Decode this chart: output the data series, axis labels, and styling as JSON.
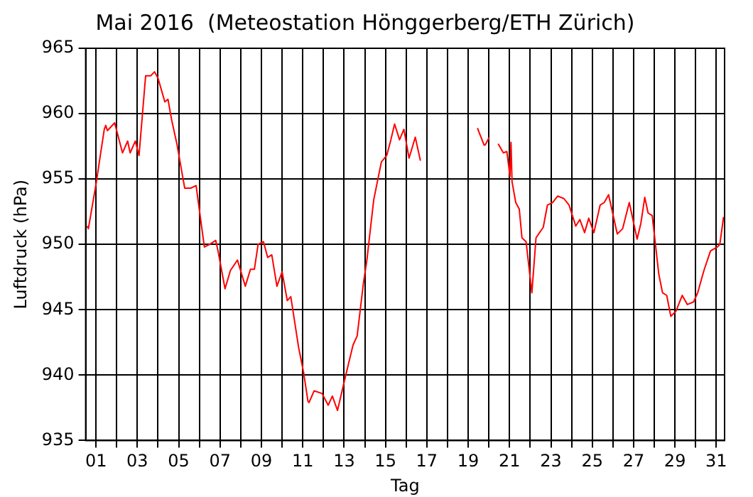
{
  "chart_data": {
    "type": "line",
    "title": "Mai 2016  (Meteostation Hönggerberg/ETH Zürich)",
    "xlabel": "Tag",
    "ylabel": "Luftdruck (hPa)",
    "xlim": [
      0.5,
      31.4
    ],
    "ylim": [
      935,
      965
    ],
    "xticks": [
      {
        "value": 1,
        "label": "01"
      },
      {
        "value": 2,
        "label": null
      },
      {
        "value": 3,
        "label": "03"
      },
      {
        "value": 4,
        "label": null
      },
      {
        "value": 5,
        "label": "05"
      },
      {
        "value": 6,
        "label": null
      },
      {
        "value": 7,
        "label": "07"
      },
      {
        "value": 8,
        "label": null
      },
      {
        "value": 9,
        "label": "09"
      },
      {
        "value": 10,
        "label": null
      },
      {
        "value": 11,
        "label": "11"
      },
      {
        "value": 12,
        "label": null
      },
      {
        "value": 13,
        "label": "13"
      },
      {
        "value": 14,
        "label": null
      },
      {
        "value": 15,
        "label": "15"
      },
      {
        "value": 16,
        "label": null
      },
      {
        "value": 17,
        "label": "17"
      },
      {
        "value": 18,
        "label": null
      },
      {
        "value": 19,
        "label": "19"
      },
      {
        "value": 20,
        "label": null
      },
      {
        "value": 21,
        "label": "21"
      },
      {
        "value": 22,
        "label": null
      },
      {
        "value": 23,
        "label": "23"
      },
      {
        "value": 24,
        "label": null
      },
      {
        "value": 25,
        "label": "25"
      },
      {
        "value": 26,
        "label": null
      },
      {
        "value": 27,
        "label": "27"
      },
      {
        "value": 28,
        "label": null
      },
      {
        "value": 29,
        "label": "29"
      },
      {
        "value": 30,
        "label": null
      },
      {
        "value": 31,
        "label": "31"
      }
    ],
    "yticks": [
      935,
      940,
      945,
      950,
      955,
      960,
      965
    ],
    "grid": true,
    "legend": false,
    "marker": "none",
    "line_style": "solid",
    "series": [
      {
        "color": "#ff0000",
        "x": [
          0.57,
          0.63,
          1.02,
          1.15,
          1.4,
          1.47,
          1.55,
          1.9,
          2.0,
          2.28,
          2.53,
          2.65,
          2.9,
          3.08,
          3.4,
          3.65,
          3.83,
          4.0,
          4.33,
          4.48,
          4.66,
          4.91,
          5.29,
          5.58,
          5.84,
          6.24,
          6.5,
          6.79,
          6.9,
          7.24,
          7.5,
          7.84,
          8.22,
          8.47,
          8.66,
          8.84,
          9.1,
          9.3,
          9.5,
          9.75,
          10.0,
          10.25,
          10.42,
          10.8,
          11.04,
          11.25,
          11.3,
          11.55,
          11.93,
          12.23,
          12.43,
          12.68,
          13.05,
          13.43,
          13.63,
          13.93,
          14.1,
          14.43,
          14.8,
          15.06,
          15.26,
          15.44,
          15.68,
          15.89,
          16.14,
          16.44,
          16.69,
          18.0,
          19.45,
          19.57,
          19.77,
          19.82,
          20.02,
          20.2,
          20.45,
          20.7,
          20.87,
          21.02,
          21.07,
          21.12,
          21.3,
          21.47,
          21.6,
          21.8,
          22.08,
          22.28,
          22.45,
          22.63,
          22.83,
          23.08,
          23.33,
          23.63,
          23.88,
          24.2,
          24.4,
          24.63,
          24.83,
          25.08,
          25.38,
          25.58,
          25.79,
          26.21,
          26.47,
          26.79,
          27.17,
          27.35,
          27.54,
          27.7,
          27.9,
          28.22,
          28.4,
          28.6,
          28.8,
          29.05,
          29.35,
          29.6,
          29.9,
          30.1,
          30.4,
          30.72,
          31.05,
          31.17,
          31.35
        ],
        "values": [
          951.4,
          951.2,
          954.8,
          956.2,
          958.8,
          959.1,
          958.7,
          959.3,
          958.7,
          957.0,
          957.9,
          957.0,
          957.9,
          956.8,
          962.9,
          962.9,
          963.2,
          962.7,
          960.9,
          961.1,
          959.5,
          957.7,
          954.3,
          954.3,
          954.5,
          949.8,
          950.0,
          950.3,
          949.5,
          946.6,
          948.0,
          948.8,
          946.8,
          948.1,
          948.1,
          950.0,
          950.2,
          949.0,
          949.2,
          946.8,
          947.9,
          945.7,
          946.0,
          942.1,
          940.2,
          938.0,
          937.9,
          938.8,
          938.6,
          937.7,
          938.4,
          937.3,
          939.8,
          942.3,
          943.0,
          947.0,
          948.8,
          953.4,
          956.3,
          956.8,
          958.0,
          959.2,
          958.0,
          958.8,
          956.6,
          958.2,
          956.4,
          null,
          958.9,
          958.4,
          957.6,
          957.6,
          958.2,
          null,
          957.7,
          957.0,
          957.1,
          955.2,
          957.8,
          954.8,
          953.2,
          952.7,
          950.5,
          950.2,
          946.3,
          950.5,
          950.9,
          951.3,
          953.0,
          953.2,
          953.7,
          953.5,
          953.0,
          951.4,
          951.9,
          950.9,
          952.0,
          950.9,
          953.0,
          953.2,
          953.8,
          950.8,
          951.2,
          953.2,
          950.4,
          951.6,
          953.6,
          952.4,
          952.2,
          947.7,
          946.3,
          946.1,
          944.5,
          944.9,
          946.1,
          945.4,
          945.6,
          946.3,
          948.0,
          949.5,
          949.8,
          950.0,
          952.1
        ]
      }
    ]
  }
}
